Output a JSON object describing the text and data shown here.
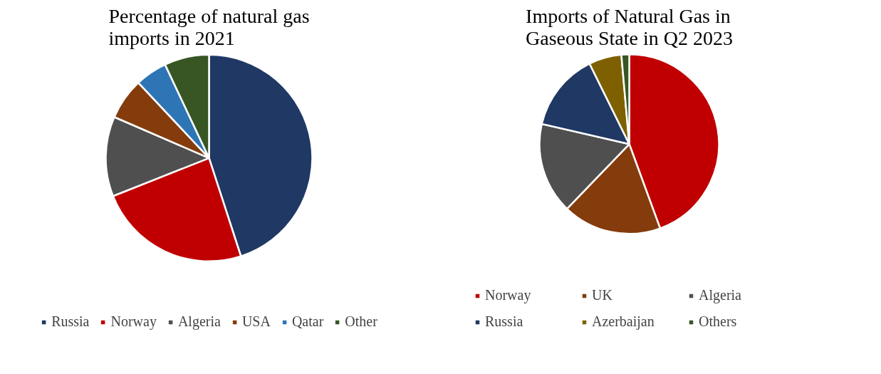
{
  "chart_data": [
    {
      "type": "pie",
      "title": "Percentage of natural gas imports in 2021",
      "categories": [
        "Russia",
        "Norway",
        "Algeria",
        "USA",
        "Qatar",
        "Other"
      ],
      "values": [
        45,
        24,
        12.5,
        6.5,
        5,
        7
      ],
      "colors": [
        "#1f3864",
        "#c00000",
        "#4f4f4f",
        "#843c0c",
        "#2e75b6",
        "#375623"
      ],
      "legend": "bottom"
    },
    {
      "type": "pie",
      "title": "Imports of Natural Gas in Gaseous State in Q2 2023",
      "categories": [
        "Norway",
        "UK",
        "Algeria",
        "Russia",
        "Azerbaijan",
        "Others"
      ],
      "values": [
        44.4,
        17.8,
        16.4,
        14.1,
        5.9,
        1.4
      ],
      "colors": [
        "#c00000",
        "#843c0c",
        "#4f4f4f",
        "#1f3864",
        "#7f6000",
        "#375623"
      ],
      "legend": "bottom"
    }
  ]
}
